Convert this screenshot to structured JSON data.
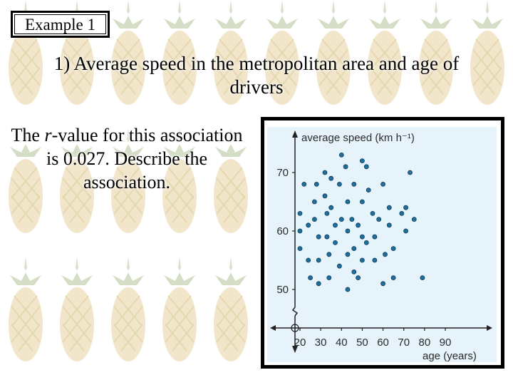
{
  "example_label": "Example 1",
  "title": "1) Average speed in the metropolitan area and age of drivers",
  "prompt": {
    "line1_before": "The ",
    "r_symbol": "r",
    "line1_after": "-value for this association is 0.027. Describe the association."
  },
  "colors": {
    "accent_panel": "#e6f3fb",
    "point": "#1f6f9f",
    "point_outline": "#0d3b57"
  },
  "chart_data": {
    "type": "scatter",
    "title": "",
    "xlabel": "age (years)",
    "ylabel": "average speed (km h⁻¹)",
    "xlim": [
      10,
      100
    ],
    "ylim": [
      44,
      78
    ],
    "xticks": [
      20,
      30,
      40,
      50,
      60,
      70,
      80,
      90
    ],
    "yticks": [
      50,
      60,
      70
    ],
    "y_axis_break": true,
    "grid": false,
    "points": [
      [
        20,
        63
      ],
      [
        20,
        60
      ],
      [
        20,
        57
      ],
      [
        22,
        68
      ],
      [
        24,
        61
      ],
      [
        24,
        55
      ],
      [
        25,
        52
      ],
      [
        27,
        65
      ],
      [
        27,
        62
      ],
      [
        28,
        68
      ],
      [
        29,
        59
      ],
      [
        29,
        55
      ],
      [
        29,
        51
      ],
      [
        32,
        70
      ],
      [
        32,
        66
      ],
      [
        33,
        63
      ],
      [
        33,
        59
      ],
      [
        34,
        56
      ],
      [
        34,
        52
      ],
      [
        35,
        69
      ],
      [
        35,
        64
      ],
      [
        37,
        61
      ],
      [
        37,
        58
      ],
      [
        39,
        68
      ],
      [
        39,
        54
      ],
      [
        40,
        73
      ],
      [
        40,
        62
      ],
      [
        42,
        71
      ],
      [
        43,
        65
      ],
      [
        43,
        60
      ],
      [
        43,
        56
      ],
      [
        43,
        50
      ],
      [
        45,
        62
      ],
      [
        46,
        68
      ],
      [
        46,
        57
      ],
      [
        46,
        53
      ],
      [
        48,
        61
      ],
      [
        48,
        52
      ],
      [
        50,
        72
      ],
      [
        50,
        65
      ],
      [
        50,
        59
      ],
      [
        50,
        55
      ],
      [
        52,
        71
      ],
      [
        52,
        58
      ],
      [
        53,
        67
      ],
      [
        55,
        63
      ],
      [
        56,
        59
      ],
      [
        56,
        55
      ],
      [
        58,
        62
      ],
      [
        60,
        68
      ],
      [
        60,
        51
      ],
      [
        61,
        56
      ],
      [
        63,
        64
      ],
      [
        63,
        61
      ],
      [
        65,
        57
      ],
      [
        65,
        52
      ],
      [
        69,
        63
      ],
      [
        71,
        64
      ],
      [
        71,
        60
      ],
      [
        73,
        70
      ],
      [
        75,
        62
      ],
      [
        79,
        52
      ]
    ]
  }
}
